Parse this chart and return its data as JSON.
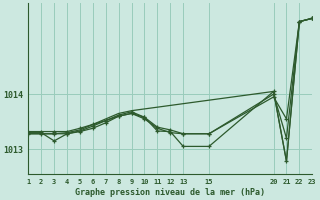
{
  "background_color": "#cce8e0",
  "grid_color": "#99ccbb",
  "line_color": "#2d5a2d",
  "marker_color": "#2d5a2d",
  "title": "Graphe pression niveau de la mer (hPa)",
  "ylabel_ticks": [
    1013,
    1014
  ],
  "xlim": [
    1,
    23
  ],
  "ylim": [
    1012.55,
    1015.65
  ],
  "x_ticks": [
    1,
    2,
    3,
    4,
    5,
    6,
    7,
    8,
    9,
    10,
    11,
    12,
    13,
    15,
    20,
    21,
    22,
    23
  ],
  "series1": [
    [
      1,
      1013.3
    ],
    [
      2,
      1013.3
    ],
    [
      3,
      1013.15
    ],
    [
      4,
      1013.28
    ],
    [
      5,
      1013.33
    ],
    [
      6,
      1013.42
    ],
    [
      7,
      1013.52
    ],
    [
      8,
      1013.62
    ],
    [
      9,
      1013.68
    ],
    [
      10,
      1013.58
    ],
    [
      11,
      1013.33
    ],
    [
      12,
      1013.32
    ],
    [
      13,
      1013.05
    ],
    [
      15,
      1013.05
    ],
    [
      20,
      1014.05
    ],
    [
      21,
      1012.78
    ],
    [
      22,
      1015.32
    ],
    [
      23,
      1015.38
    ]
  ],
  "series2": [
    [
      1,
      1013.28
    ],
    [
      2,
      1013.28
    ],
    [
      3,
      1013.28
    ],
    [
      4,
      1013.28
    ],
    [
      5,
      1013.32
    ],
    [
      6,
      1013.38
    ],
    [
      7,
      1013.48
    ],
    [
      8,
      1013.6
    ],
    [
      9,
      1013.65
    ],
    [
      10,
      1013.55
    ],
    [
      11,
      1013.38
    ],
    [
      12,
      1013.3
    ],
    [
      13,
      1013.28
    ],
    [
      15,
      1013.28
    ],
    [
      20,
      1013.95
    ],
    [
      21,
      1013.55
    ],
    [
      22,
      1015.32
    ],
    [
      23,
      1015.38
    ]
  ],
  "series3": [
    [
      1,
      1013.28
    ],
    [
      2,
      1013.28
    ],
    [
      3,
      1013.28
    ],
    [
      4,
      1013.3
    ],
    [
      5,
      1013.35
    ],
    [
      6,
      1013.45
    ],
    [
      7,
      1013.55
    ],
    [
      8,
      1013.65
    ],
    [
      9,
      1013.7
    ],
    [
      20,
      1014.05
    ],
    [
      21,
      1012.78
    ],
    [
      22,
      1015.32
    ],
    [
      23,
      1015.38
    ]
  ],
  "series4": [
    [
      1,
      1013.32
    ],
    [
      2,
      1013.32
    ],
    [
      3,
      1013.32
    ],
    [
      4,
      1013.32
    ],
    [
      5,
      1013.38
    ],
    [
      6,
      1013.45
    ],
    [
      7,
      1013.52
    ],
    [
      8,
      1013.6
    ],
    [
      9,
      1013.65
    ],
    [
      10,
      1013.58
    ],
    [
      11,
      1013.4
    ],
    [
      12,
      1013.35
    ],
    [
      13,
      1013.28
    ],
    [
      15,
      1013.28
    ],
    [
      20,
      1014.0
    ],
    [
      21,
      1013.2
    ],
    [
      22,
      1015.32
    ],
    [
      23,
      1015.38
    ]
  ]
}
